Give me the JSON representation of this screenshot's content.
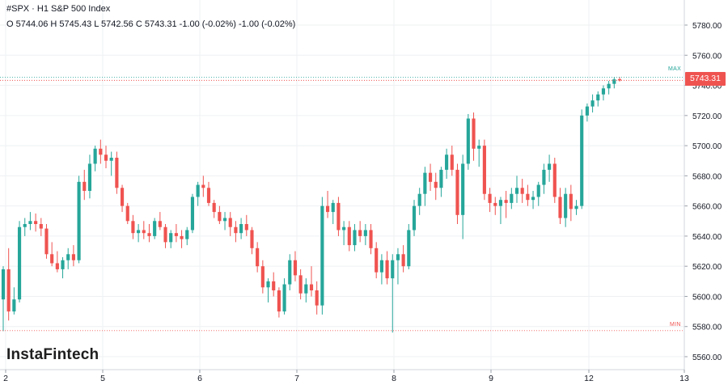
{
  "header": {
    "title": "#SPX · H1 S&P 500 Index",
    "ohlc": "O 5744.06 H 5745.43 L 5742.56 C 5743.31 -1.00 (-0.02%) -1.00 (-0.02%)"
  },
  "brand": "InstaFintech",
  "current_price_label": "5743.31",
  "max_label": "MAX",
  "min_label": "MIN",
  "colors": {
    "up": "#26a69a",
    "down": "#ef5350",
    "grid": "#eef0f3",
    "axis_text": "#131722"
  },
  "chart_data": {
    "type": "candlestick",
    "title": "#SPX · H1 S&P 500 Index",
    "xlabel": "",
    "ylabel": "",
    "ylim": [
      5550,
      5795
    ],
    "yticks": [
      5560,
      5580,
      5600,
      5620,
      5640,
      5660,
      5680,
      5700,
      5720,
      5740,
      5760,
      5780
    ],
    "xticks": [
      "2",
      "5",
      "6",
      "7",
      "8",
      "9",
      "12",
      "13"
    ],
    "grid": true,
    "current_price": 5743.31,
    "max_line": 5745.4,
    "min_line": 5577.3,
    "ohlc": [
      [
        5598,
        5620,
        5577,
        5618
      ],
      [
        5618,
        5632,
        5584,
        5590
      ],
      [
        5590,
        5606,
        5588,
        5598
      ],
      [
        5598,
        5650,
        5596,
        5646
      ],
      [
        5646,
        5652,
        5640,
        5648
      ],
      [
        5648,
        5656,
        5644,
        5650
      ],
      [
        5650,
        5655,
        5643,
        5648
      ],
      [
        5648,
        5652,
        5640,
        5645
      ],
      [
        5645,
        5648,
        5625,
        5628
      ],
      [
        5628,
        5636,
        5620,
        5622
      ],
      [
        5622,
        5630,
        5616,
        5618
      ],
      [
        5618,
        5626,
        5612,
        5624
      ],
      [
        5624,
        5632,
        5618,
        5628
      ],
      [
        5628,
        5634,
        5620,
        5624
      ],
      [
        5624,
        5680,
        5622,
        5676
      ],
      [
        5676,
        5684,
        5664,
        5670
      ],
      [
        5670,
        5694,
        5665,
        5688
      ],
      [
        5688,
        5700,
        5683,
        5698
      ],
      [
        5698,
        5704,
        5688,
        5694
      ],
      [
        5694,
        5700,
        5685,
        5690
      ],
      [
        5690,
        5696,
        5680,
        5692
      ],
      [
        5692,
        5696,
        5668,
        5672
      ],
      [
        5672,
        5674,
        5656,
        5660
      ],
      [
        5660,
        5662,
        5648,
        5650
      ],
      [
        5650,
        5654,
        5638,
        5642
      ],
      [
        5642,
        5648,
        5636,
        5644
      ],
      [
        5644,
        5650,
        5638,
        5642
      ],
      [
        5642,
        5648,
        5636,
        5640
      ],
      [
        5640,
        5652,
        5638,
        5650
      ],
      [
        5650,
        5656,
        5644,
        5646
      ],
      [
        5646,
        5648,
        5632,
        5636
      ],
      [
        5636,
        5644,
        5632,
        5642
      ],
      [
        5642,
        5648,
        5636,
        5640
      ],
      [
        5640,
        5644,
        5632,
        5638
      ],
      [
        5638,
        5646,
        5634,
        5644
      ],
      [
        5644,
        5668,
        5642,
        5666
      ],
      [
        5666,
        5676,
        5660,
        5674
      ],
      [
        5674,
        5680,
        5666,
        5672
      ],
      [
        5672,
        5676,
        5660,
        5662
      ],
      [
        5662,
        5664,
        5652,
        5656
      ],
      [
        5656,
        5660,
        5648,
        5650
      ],
      [
        5650,
        5656,
        5644,
        5652
      ],
      [
        5652,
        5656,
        5640,
        5646
      ],
      [
        5646,
        5650,
        5636,
        5642
      ],
      [
        5642,
        5652,
        5638,
        5648
      ],
      [
        5648,
        5654,
        5640,
        5644
      ],
      [
        5644,
        5646,
        5628,
        5632
      ],
      [
        5632,
        5636,
        5616,
        5620
      ],
      [
        5620,
        5624,
        5602,
        5606
      ],
      [
        5606,
        5612,
        5596,
        5610
      ],
      [
        5610,
        5616,
        5600,
        5604
      ],
      [
        5604,
        5606,
        5586,
        5590
      ],
      [
        5590,
        5612,
        5588,
        5608
      ],
      [
        5608,
        5628,
        5604,
        5624
      ],
      [
        5624,
        5630,
        5610,
        5614
      ],
      [
        5614,
        5618,
        5598,
        5602
      ],
      [
        5602,
        5612,
        5596,
        5608
      ],
      [
        5608,
        5620,
        5600,
        5604
      ],
      [
        5604,
        5610,
        5588,
        5594
      ],
      [
        5594,
        5666,
        5588,
        5660
      ],
      [
        5660,
        5670,
        5652,
        5656
      ],
      [
        5656,
        5664,
        5648,
        5662
      ],
      [
        5662,
        5666,
        5640,
        5644
      ],
      [
        5644,
        5650,
        5634,
        5646
      ],
      [
        5646,
        5650,
        5630,
        5634
      ],
      [
        5634,
        5648,
        5630,
        5644
      ],
      [
        5644,
        5650,
        5636,
        5640
      ],
      [
        5640,
        5648,
        5634,
        5644
      ],
      [
        5644,
        5648,
        5628,
        5632
      ],
      [
        5632,
        5636,
        5612,
        5616
      ],
      [
        5616,
        5628,
        5608,
        5624
      ],
      [
        5624,
        5630,
        5608,
        5612
      ],
      [
        5612,
        5628,
        5576,
        5624
      ],
      [
        5624,
        5632,
        5608,
        5628
      ],
      [
        5628,
        5634,
        5616,
        5620
      ],
      [
        5620,
        5648,
        5618,
        5644
      ],
      [
        5644,
        5664,
        5640,
        5660
      ],
      [
        5660,
        5672,
        5654,
        5668
      ],
      [
        5668,
        5686,
        5660,
        5682
      ],
      [
        5682,
        5688,
        5670,
        5676
      ],
      [
        5676,
        5682,
        5664,
        5672
      ],
      [
        5672,
        5686,
        5666,
        5684
      ],
      [
        5684,
        5698,
        5678,
        5694
      ],
      [
        5694,
        5700,
        5680,
        5684
      ],
      [
        5684,
        5688,
        5648,
        5654
      ],
      [
        5654,
        5694,
        5638,
        5688
      ],
      [
        5688,
        5721,
        5684,
        5718
      ],
      [
        5718,
        5722,
        5690,
        5698
      ],
      [
        5698,
        5704,
        5686,
        5700
      ],
      [
        5700,
        5704,
        5664,
        5668
      ],
      [
        5668,
        5672,
        5656,
        5662
      ],
      [
        5662,
        5666,
        5654,
        5660
      ],
      [
        5660,
        5666,
        5648,
        5664
      ],
      [
        5664,
        5670,
        5652,
        5662
      ],
      [
        5662,
        5672,
        5658,
        5668
      ],
      [
        5668,
        5680,
        5662,
        5672
      ],
      [
        5672,
        5678,
        5662,
        5668
      ],
      [
        5668,
        5674,
        5660,
        5664
      ],
      [
        5664,
        5670,
        5658,
        5666
      ],
      [
        5666,
        5676,
        5660,
        5674
      ],
      [
        5674,
        5688,
        5668,
        5684
      ],
      [
        5684,
        5694,
        5676,
        5688
      ],
      [
        5688,
        5692,
        5662,
        5666
      ],
      [
        5666,
        5672,
        5648,
        5652
      ],
      [
        5652,
        5672,
        5646,
        5668
      ],
      [
        5668,
        5674,
        5650,
        5658
      ],
      [
        5658,
        5664,
        5654,
        5660
      ],
      [
        5660,
        5724,
        5658,
        5720
      ],
      [
        5720,
        5728,
        5716,
        5726
      ],
      [
        5726,
        5734,
        5722,
        5730
      ],
      [
        5730,
        5736,
        5726,
        5734
      ],
      [
        5734,
        5740,
        5730,
        5738
      ],
      [
        5738,
        5743,
        5734,
        5741
      ],
      [
        5741,
        5745.4,
        5738,
        5744
      ],
      [
        5744.06,
        5745.43,
        5742.56,
        5743.31
      ]
    ]
  }
}
